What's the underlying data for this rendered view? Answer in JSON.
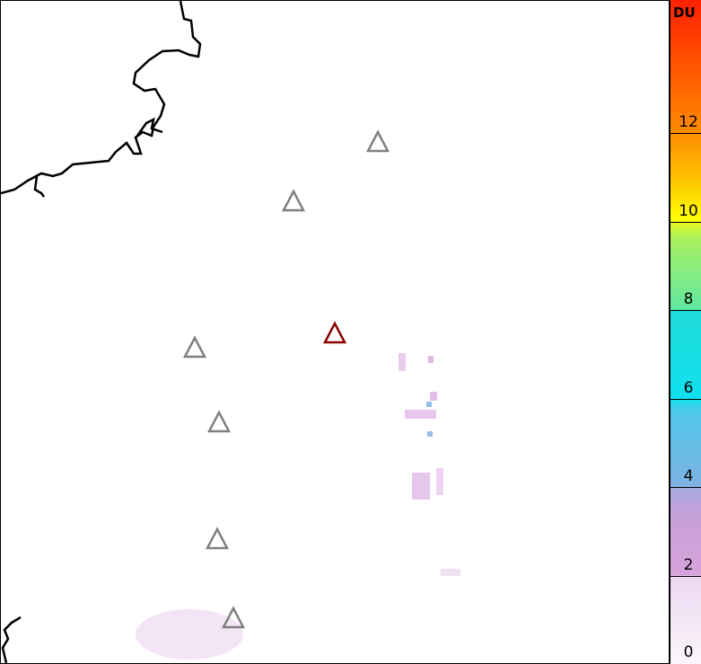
{
  "colorbar": {
    "unit": "DU",
    "ticks": [
      "0",
      "2",
      "4",
      "6",
      "8",
      "10",
      "12"
    ],
    "range": [
      0,
      15
    ]
  },
  "volcanoes": [
    {
      "status": "inactive",
      "color": "#808080"
    },
    {
      "status": "inactive",
      "color": "#808080"
    },
    {
      "status": "active",
      "color": "#8b0000"
    },
    {
      "status": "inactive",
      "color": "#808080"
    },
    {
      "status": "inactive",
      "color": "#808080"
    },
    {
      "status": "inactive",
      "color": "#808080"
    },
    {
      "status": "inactive",
      "color": "#808080"
    }
  ],
  "coastline_color": "#000000"
}
